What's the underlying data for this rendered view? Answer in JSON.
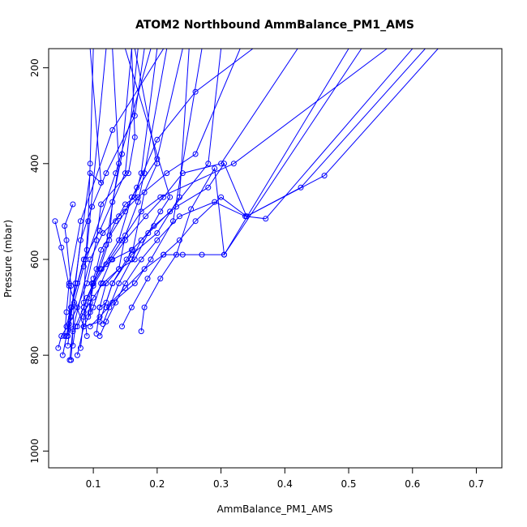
{
  "chart_data": {
    "type": "line",
    "title": "ATOM2 Northbound AmmBalance_PM1_AMS",
    "xlabel": "AmmBalance_PM1_AMS",
    "ylabel": "Pressure (mbar)",
    "xlim": [
      0.03,
      0.74
    ],
    "ylim": [
      1035,
      160
    ],
    "y_inverted": true,
    "grid": false,
    "legend": "none",
    "x_ticks": [
      0.1,
      0.2,
      0.3,
      0.4,
      0.5,
      0.6,
      0.7
    ],
    "x_tick_labels": [
      "0.1",
      "0.2",
      "0.3",
      "0.4",
      "0.5",
      "0.6",
      "0.7"
    ],
    "y_ticks": [
      200,
      400,
      600,
      800,
      1000
    ],
    "y_tick_labels": [
      "200",
      "400",
      "600",
      "800",
      "1000"
    ],
    "color": "#0000ff",
    "markers": "open-circle",
    "series": [
      {
        "x": [
          0.045,
          0.05,
          0.062,
          0.075,
          0.09,
          0.105,
          0.112,
          0.155,
          0.165,
          0.16
        ],
        "y": [
          785,
          760,
          735,
          700,
          650,
          560,
          485,
          420,
          345,
          160
        ]
      },
      {
        "x": [
          0.068,
          0.055,
          0.058,
          0.065,
          0.06,
          0.095,
          0.112,
          0.095
        ],
        "y": [
          485,
          530,
          560,
          655,
          760,
          420,
          440,
          160
        ]
      },
      {
        "x": [
          0.04,
          0.05,
          0.062,
          0.085,
          0.11,
          0.13,
          0.16,
          0.2,
          0.235,
          0.25
        ],
        "y": [
          520,
          575,
          655,
          740,
          730,
          650,
          590,
          545,
          470,
          160
        ]
      },
      {
        "x": [
          0.063,
          0.068,
          0.095,
          0.115,
          0.14,
          0.17,
          0.215,
          0.26,
          0.33
        ],
        "y": [
          810,
          745,
          600,
          545,
          510,
          470,
          420,
          380,
          160
        ]
      },
      {
        "x": [
          0.075,
          0.085,
          0.1,
          0.112,
          0.128,
          0.15,
          0.182,
          0.21,
          0.24,
          0.3,
          0.42
        ],
        "y": [
          800,
          740,
          700,
          650,
          600,
          560,
          510,
          470,
          420,
          400,
          160
        ]
      },
      {
        "x": [
          0.055,
          0.058,
          0.062,
          0.08,
          0.13,
          0.21
        ],
        "y": [
          760,
          710,
          650,
          520,
          330,
          160
        ]
      },
      {
        "x": [
          0.065,
          0.068,
          0.07,
          0.085,
          0.135,
          0.19
        ],
        "y": [
          810,
          750,
          690,
          615,
          420,
          160
        ]
      },
      {
        "x": [
          0.09,
          0.085,
          0.088,
          0.092,
          0.095,
          0.1
        ],
        "y": [
          760,
          690,
          600,
          520,
          400,
          160
        ]
      },
      {
        "x": [
          0.08,
          0.085,
          0.1,
          0.14,
          0.16,
          0.2,
          0.24
        ],
        "y": [
          785,
          720,
          650,
          560,
          470,
          390,
          160
        ]
      },
      {
        "x": [
          0.092,
          0.095,
          0.1,
          0.12,
          0.145,
          0.175,
          0.205,
          0.32,
          0.56
        ],
        "y": [
          720,
          690,
          655,
          610,
          560,
          500,
          470,
          400,
          160
        ]
      },
      {
        "x": [
          0.075,
          0.085,
          0.1,
          0.115,
          0.14,
          0.165,
          0.186,
          0.205,
          0.22,
          0.15
        ],
        "y": [
          740,
          710,
          680,
          650,
          620,
          600,
          545,
          500,
          470,
          160
        ]
      },
      {
        "x": [
          0.11,
          0.12,
          0.135,
          0.15,
          0.175,
          0.2,
          0.235,
          0.29,
          0.338,
          0.37,
          0.6
        ],
        "y": [
          760,
          730,
          690,
          650,
          600,
          560,
          510,
          480,
          510,
          515,
          160
        ]
      },
      {
        "x": [
          0.115,
          0.125,
          0.14,
          0.16,
          0.175,
          0.195,
          0.23,
          0.28,
          0.305,
          0.34,
          0.425,
          0.62
        ],
        "y": [
          735,
          700,
          650,
          600,
          560,
          530,
          490,
          450,
          400,
          510,
          450,
          160
        ]
      },
      {
        "x": [
          0.145,
          0.16,
          0.185,
          0.21,
          0.235,
          0.26,
          0.3,
          0.34,
          0.462,
          0.64
        ],
        "y": [
          740,
          700,
          640,
          590,
          560,
          520,
          470,
          510,
          425,
          160
        ]
      },
      {
        "x": [
          0.175,
          0.18,
          0.205,
          0.23,
          0.253,
          0.29,
          0.305,
          0.52
        ],
        "y": [
          750,
          700,
          640,
          590,
          495,
          410,
          590,
          160
        ]
      },
      {
        "x": [
          0.12,
          0.15,
          0.18,
          0.21,
          0.24,
          0.27,
          0.305,
          0.5
        ],
        "y": [
          700,
          660,
          620,
          590,
          590,
          590,
          590,
          160
        ]
      },
      {
        "x": [
          0.1,
          0.105,
          0.112,
          0.15,
          0.168,
          0.2,
          0.26,
          0.35
        ],
        "y": [
          640,
          620,
          580,
          500,
          450,
          350,
          250,
          160
        ]
      },
      {
        "x": [
          0.095,
          0.098,
          0.11,
          0.125,
          0.13,
          0.145,
          0.16
        ],
        "y": [
          710,
          650,
          620,
          560,
          480,
          380,
          160
        ]
      },
      {
        "x": [
          0.105,
          0.11,
          0.12,
          0.14,
          0.15,
          0.17,
          0.18,
          0.215
        ],
        "y": [
          755,
          700,
          650,
          620,
          550,
          480,
          420,
          160
        ]
      },
      {
        "x": [
          0.125,
          0.135,
          0.15,
          0.165,
          0.175,
          0.2
        ],
        "y": [
          550,
          520,
          485,
          470,
          420,
          160
        ]
      },
      {
        "x": [
          0.085,
          0.09,
          0.1,
          0.113,
          0.13,
          0.16,
          0.22,
          0.28,
          0.3
        ],
        "y": [
          700,
          680,
          650,
          620,
          600,
          580,
          500,
          400,
          160
        ]
      },
      {
        "x": [
          0.068,
          0.072,
          0.085,
          0.1,
          0.12,
          0.14,
          0.13
        ],
        "y": [
          780,
          740,
          700,
          650,
          570,
          400,
          160
        ]
      },
      {
        "x": [
          0.06,
          0.065,
          0.072,
          0.08,
          0.098,
          0.12,
          0.165,
          0.18
        ],
        "y": [
          780,
          720,
          650,
          560,
          490,
          420,
          300,
          160
        ]
      },
      {
        "x": [
          0.058,
          0.065,
          0.075,
          0.085,
          0.11,
          0.15,
          0.17
        ],
        "y": [
          740,
          700,
          650,
          600,
          540,
          420,
          160
        ]
      },
      {
        "x": [
          0.052,
          0.058,
          0.065,
          0.09,
          0.12
        ],
        "y": [
          800,
          760,
          700,
          580,
          160
        ]
      },
      {
        "x": [
          0.095,
          0.11,
          0.13,
          0.165,
          0.19,
          0.225,
          0.27
        ],
        "y": [
          740,
          720,
          690,
          650,
          600,
          520,
          160
        ]
      },
      {
        "x": [
          0.11,
          0.12,
          0.13,
          0.152,
          0.162,
          0.18,
          0.2,
          0.165
        ],
        "y": [
          700,
          690,
          650,
          600,
          580,
          460,
          400,
          160
        ]
      }
    ]
  }
}
